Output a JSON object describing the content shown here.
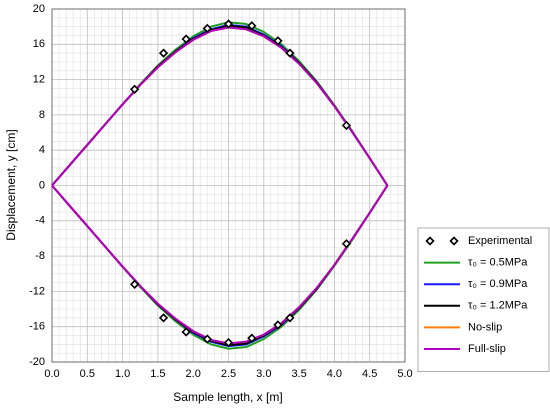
{
  "chart_data": {
    "type": "line",
    "x_label": "Sample length, x [m]",
    "y_label": "Displacement, y [cm]",
    "xlim": [
      0,
      5
    ],
    "ylim": [
      -20,
      20
    ],
    "xticks": [
      {
        "value": 0,
        "label": "0.0"
      },
      0.5,
      {
        "value": 1,
        "label": "1.0"
      },
      1.5,
      {
        "value": 2,
        "label": "2.0"
      },
      2.5,
      {
        "value": 3,
        "label": "3.0"
      },
      3.5,
      {
        "value": 4,
        "label": "4.0"
      },
      4.5,
      {
        "value": 5,
        "label": "5.0"
      }
    ],
    "yticks": [
      -20,
      -16,
      -12,
      -8,
      -4,
      0,
      4,
      8,
      12,
      16,
      20
    ],
    "grid": true,
    "minor_divisions": {
      "x": 5,
      "y": 4
    },
    "legend": "right",
    "x": [
      0,
      0.25,
      0.5,
      0.75,
      1,
      1.25,
      1.5,
      1.75,
      2,
      2.25,
      2.5,
      2.75,
      3,
      3.25,
      3.5,
      3.75,
      4,
      4.25,
      4.5,
      4.75,
      null,
      0,
      0.25,
      0.5,
      0.75,
      1,
      1.25,
      1.5,
      1.75,
      2,
      2.25,
      2.5,
      2.75,
      3,
      3.25,
      3.5,
      3.75,
      4,
      4.25,
      4.5,
      4.75
    ],
    "series": [
      {
        "name": "Experimental",
        "type": "scatter",
        "marker": "diamond",
        "color": "#000000",
        "x": [
          1.17,
          1.58,
          1.9,
          2.2,
          2.5,
          2.83,
          3.2,
          3.37,
          4.17,
          1.17,
          1.58,
          1.9,
          2.2,
          2.5,
          2.83,
          3.2,
          3.37,
          4.17
        ],
        "values": [
          10.9,
          15.0,
          16.6,
          17.8,
          18.3,
          18.1,
          16.4,
          15.0,
          6.8,
          -11.2,
          -15.0,
          -16.6,
          -17.4,
          -17.8,
          -17.3,
          -15.8,
          -15.0,
          -6.6
        ]
      },
      {
        "name": "τ₀ = 0.5MPa",
        "color": "#22a022",
        "values": [
          0,
          2.3,
          4.6,
          6.9,
          9.2,
          11.5,
          13.6,
          15.4,
          16.9,
          18.0,
          18.5,
          18.3,
          17.4,
          16.0,
          14.1,
          11.8,
          9.1,
          6.2,
          3.1,
          0,
          null,
          0,
          -2.3,
          -4.6,
          -6.9,
          -9.2,
          -11.5,
          -13.6,
          -15.4,
          -16.9,
          -18.0,
          -18.5,
          -18.3,
          -17.4,
          -16.0,
          -14.1,
          -11.8,
          -9.1,
          -6.2,
          -3.1,
          0
        ]
      },
      {
        "name": "τ₀ = 0.9MPa",
        "color": "#1a1aff",
        "values": [
          0,
          2.3,
          4.6,
          6.9,
          9.2,
          11.4,
          13.5,
          15.2,
          16.7,
          17.7,
          18.2,
          18.0,
          17.1,
          15.8,
          13.9,
          11.7,
          9.0,
          6.1,
          3.1,
          0,
          null,
          0,
          -2.3,
          -4.6,
          -6.9,
          -9.2,
          -11.4,
          -13.5,
          -15.2,
          -16.7,
          -17.7,
          -18.2,
          -18.0,
          -17.1,
          -15.8,
          -13.9,
          -11.7,
          -9.0,
          -6.1,
          -3.1,
          0
        ]
      },
      {
        "name": "τ₀ = 1.2MPa",
        "color": "#000000",
        "values": [
          0,
          2.3,
          4.6,
          6.9,
          9.2,
          11.4,
          13.5,
          15.2,
          16.6,
          17.6,
          18.1,
          17.9,
          17.0,
          15.7,
          13.9,
          11.7,
          9.0,
          6.1,
          3.1,
          0,
          null,
          0,
          -2.3,
          -4.6,
          -6.9,
          -9.2,
          -11.4,
          -13.5,
          -15.2,
          -16.6,
          -17.6,
          -18.1,
          -17.9,
          -17.0,
          -15.7,
          -13.9,
          -11.7,
          -9.0,
          -6.1,
          -3.1,
          0
        ]
      },
      {
        "name": "No-slip",
        "color": "#ff7f0e",
        "values": [
          0,
          2.3,
          4.6,
          6.9,
          9.2,
          11.4,
          13.4,
          15.1,
          16.5,
          17.5,
          17.9,
          17.7,
          16.9,
          15.6,
          13.8,
          11.6,
          9.0,
          6.1,
          3.1,
          0,
          null,
          0,
          -2.3,
          -4.6,
          -6.9,
          -9.2,
          -11.4,
          -13.4,
          -15.1,
          -16.5,
          -17.5,
          -17.9,
          -17.7,
          -16.9,
          -15.6,
          -13.8,
          -11.6,
          -9.0,
          -6.1,
          -3.1,
          0
        ]
      },
      {
        "name": "Full-slip",
        "color": "#b000c0",
        "values": [
          0,
          2.3,
          4.6,
          6.9,
          9.2,
          11.4,
          13.4,
          15.1,
          16.5,
          17.5,
          17.9,
          17.7,
          16.9,
          15.6,
          13.8,
          11.6,
          9.0,
          6.1,
          3.1,
          0,
          null,
          0,
          -2.3,
          -4.6,
          -6.9,
          -9.2,
          -11.4,
          -13.4,
          -15.1,
          -16.5,
          -17.5,
          -17.9,
          -17.7,
          -16.9,
          -15.6,
          -13.8,
          -11.6,
          -9.0,
          -6.1,
          -3.1,
          0
        ]
      }
    ]
  }
}
